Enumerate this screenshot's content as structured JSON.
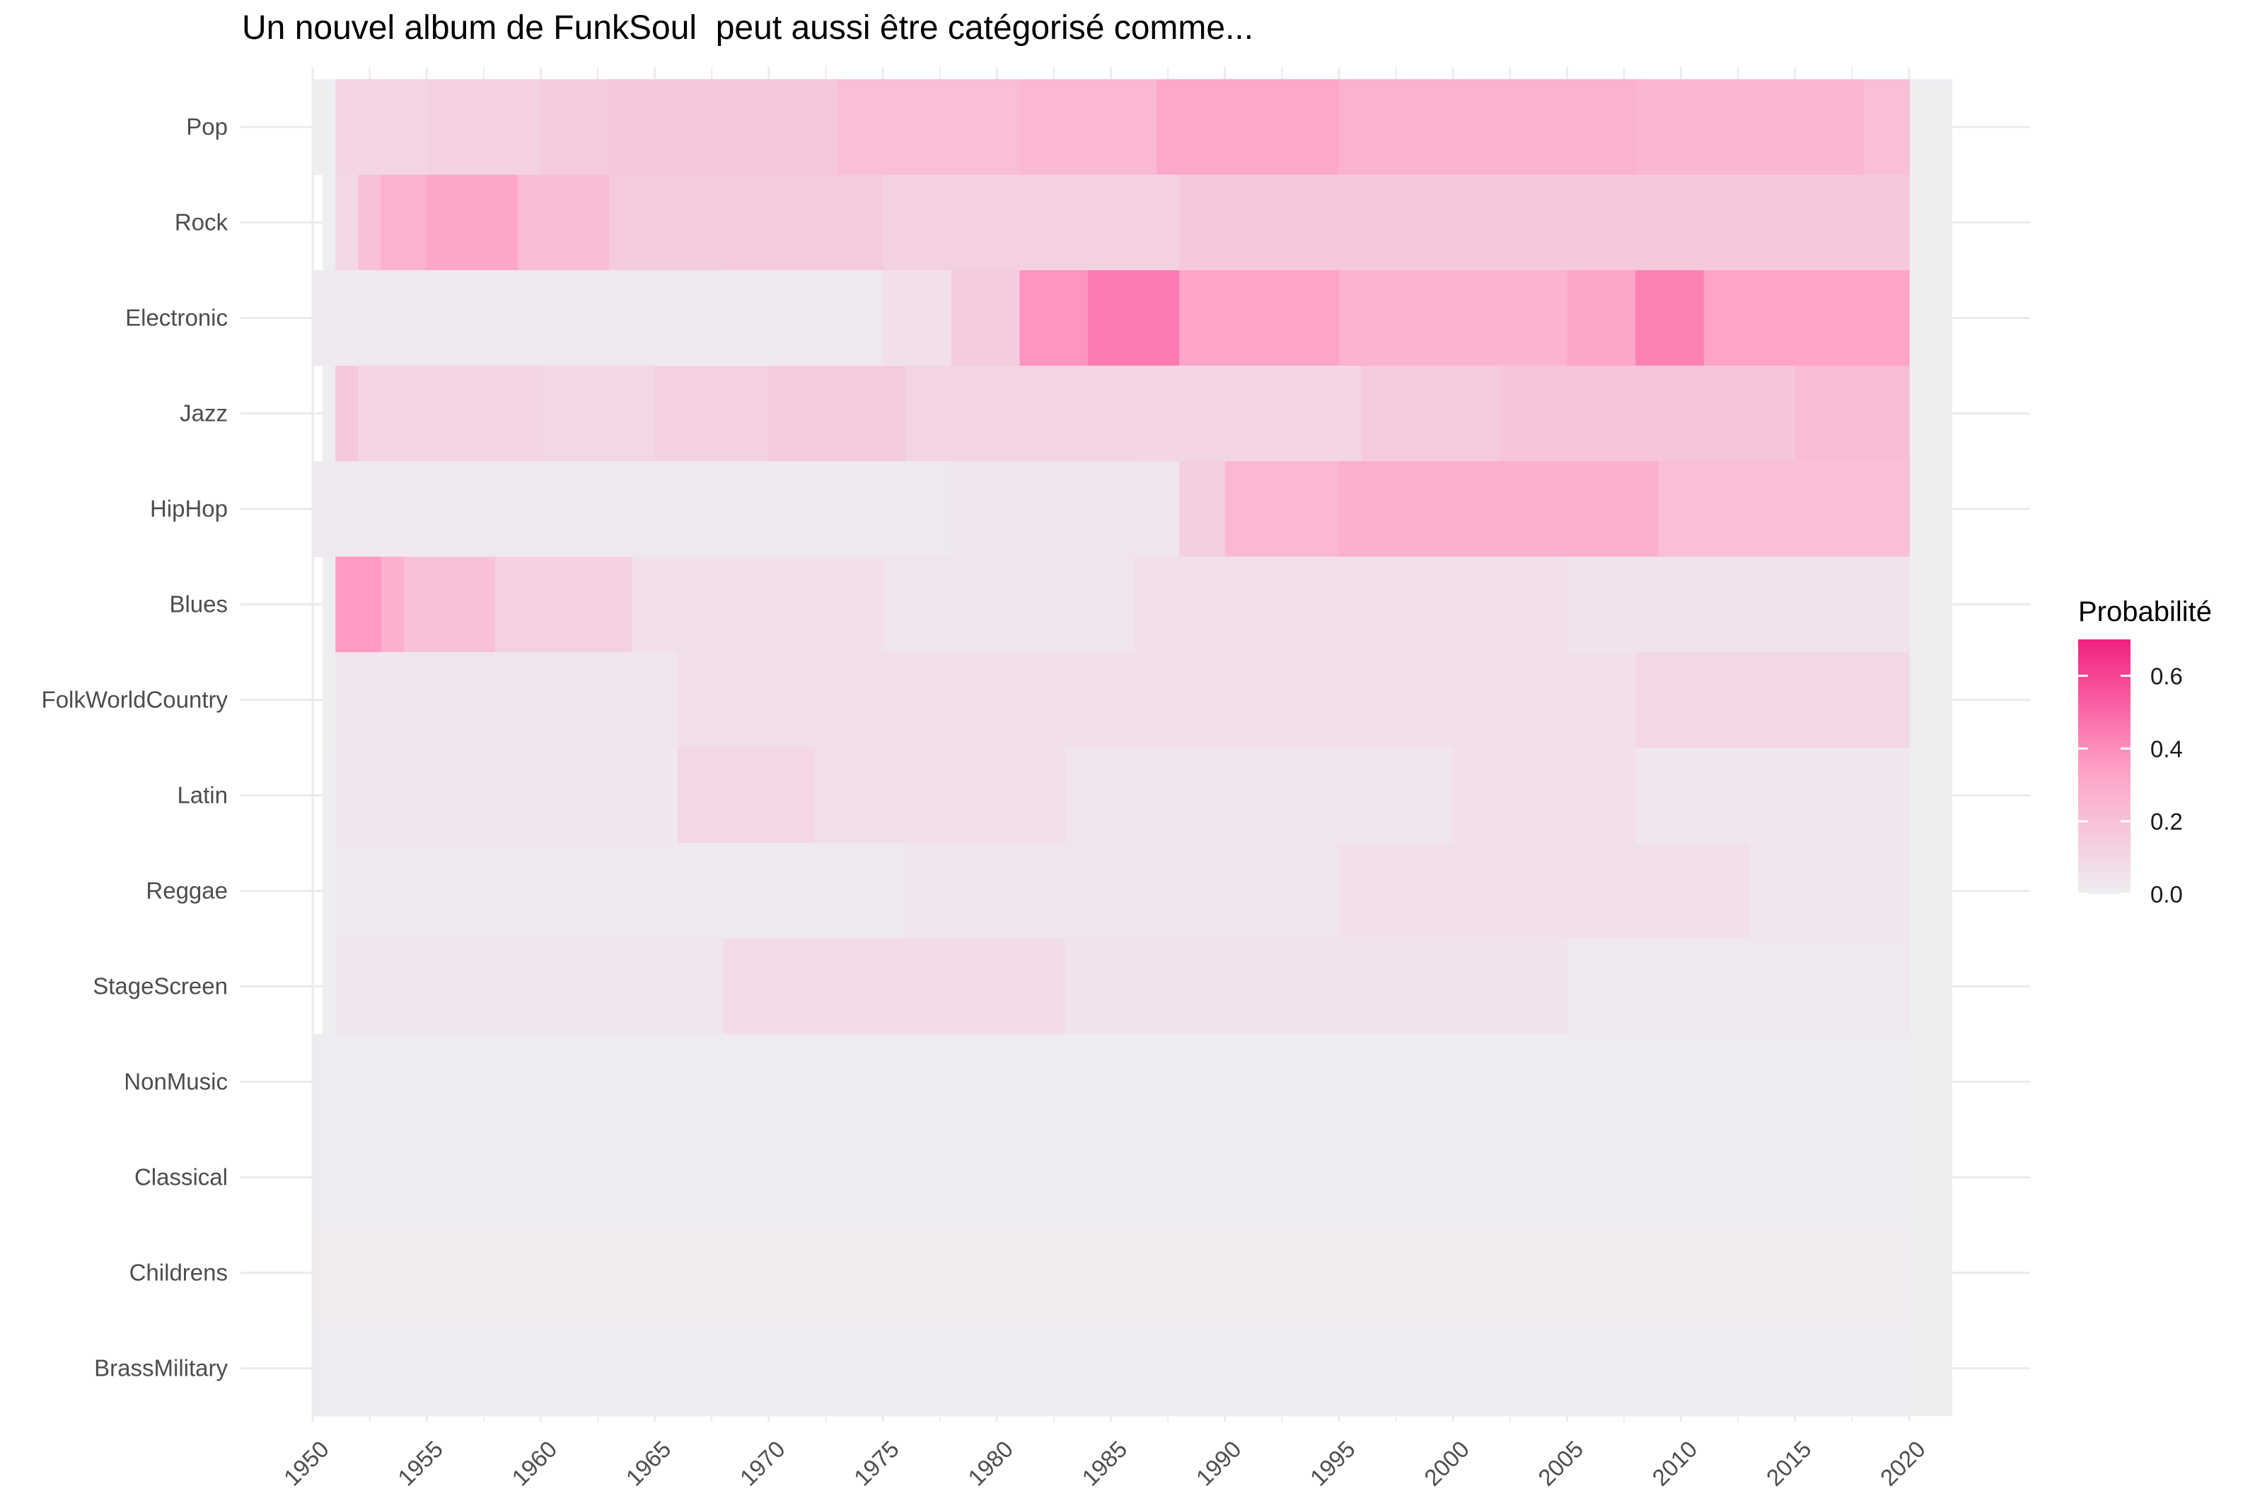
{
  "chart_data": {
    "type": "heatmap",
    "title": "Un nouvel album de FunkSoul  peut aussi être catégorisé comme...",
    "xlabel": "",
    "ylabel": "",
    "x_range": [
      1950,
      2020
    ],
    "x_ticks": [
      "1950",
      "1955",
      "1960",
      "1965",
      "1970",
      "1975",
      "1980",
      "1985",
      "1990",
      "1995",
      "2000",
      "2005",
      "2010",
      "2015",
      "2020"
    ],
    "y_categories": [
      "Pop",
      "Rock",
      "Electronic",
      "Jazz",
      "HipHop",
      "Blues",
      "FolkWorldCountry",
      "Latin",
      "Reggae",
      "StageScreen",
      "NonMusic",
      "Classical",
      "Childrens",
      "BrassMilitary"
    ],
    "legend": {
      "title": "Probabilité",
      "position": "right",
      "ticks": [
        "0.0",
        "0.2",
        "0.4",
        "0.6"
      ],
      "range": [
        0,
        0.7
      ],
      "colors": [
        "#eeeef1",
        "#ff9fc6",
        "#f2207f"
      ]
    },
    "grid": true,
    "series": [
      {
        "name": "Pop",
        "segments": [
          [
            1950,
            1951,
            0
          ],
          [
            1951,
            1955,
            0.11
          ],
          [
            1955,
            1960,
            0.13
          ],
          [
            1960,
            1963,
            0.15
          ],
          [
            1963,
            1973,
            0.17
          ],
          [
            1973,
            1981,
            0.21
          ],
          [
            1981,
            1987,
            0.24
          ],
          [
            1987,
            1995,
            0.31
          ],
          [
            1995,
            2008,
            0.27
          ],
          [
            2008,
            2018,
            0.25
          ],
          [
            2018,
            2020,
            0.21
          ]
        ]
      },
      {
        "name": "Rock",
        "segments": [
          [
            1951,
            1952,
            0.1
          ],
          [
            1952,
            1953,
            0.2
          ],
          [
            1953,
            1955,
            0.27
          ],
          [
            1955,
            1959,
            0.32
          ],
          [
            1959,
            1963,
            0.22
          ],
          [
            1963,
            1968,
            0.15
          ],
          [
            1968,
            1975,
            0.16
          ],
          [
            1975,
            1988,
            0.13
          ],
          [
            1988,
            2020,
            0.17
          ]
        ]
      },
      {
        "name": "Electronic",
        "segments": [
          [
            1950,
            1975,
            0.02
          ],
          [
            1975,
            1978,
            0.06
          ],
          [
            1978,
            1981,
            0.15
          ],
          [
            1981,
            1984,
            0.38
          ],
          [
            1984,
            1988,
            0.45
          ],
          [
            1988,
            1995,
            0.33
          ],
          [
            1995,
            2005,
            0.26
          ],
          [
            2005,
            2008,
            0.32
          ],
          [
            2008,
            2011,
            0.43
          ],
          [
            2011,
            2020,
            0.33
          ]
        ]
      },
      {
        "name": "Jazz",
        "segments": [
          [
            1951,
            1952,
            0.17
          ],
          [
            1952,
            1960,
            0.11
          ],
          [
            1960,
            1965,
            0.1
          ],
          [
            1965,
            1970,
            0.13
          ],
          [
            1970,
            1976,
            0.15
          ],
          [
            1976,
            1986,
            0.12
          ],
          [
            1986,
            1996,
            0.11
          ],
          [
            1996,
            2002,
            0.16
          ],
          [
            2002,
            2015,
            0.18
          ],
          [
            2015,
            2020,
            0.22
          ]
        ]
      },
      {
        "name": "HipHop",
        "segments": [
          [
            1950,
            1978,
            0.02
          ],
          [
            1978,
            1988,
            0.04
          ],
          [
            1988,
            1990,
            0.14
          ],
          [
            1990,
            1995,
            0.24
          ],
          [
            1995,
            2009,
            0.28
          ],
          [
            2009,
            2020,
            0.21
          ]
        ]
      },
      {
        "name": "Blues",
        "segments": [
          [
            1951,
            1953,
            0.36
          ],
          [
            1953,
            1954,
            0.28
          ],
          [
            1954,
            1958,
            0.2
          ],
          [
            1958,
            1964,
            0.13
          ],
          [
            1964,
            1975,
            0.06
          ],
          [
            1975,
            1986,
            0.04
          ],
          [
            1986,
            2005,
            0.06
          ],
          [
            2005,
            2020,
            0.05
          ]
        ]
      },
      {
        "name": "FolkWorldCountry",
        "segments": [
          [
            1951,
            1966,
            0.04
          ],
          [
            1966,
            1980,
            0.07
          ],
          [
            1980,
            2008,
            0.06
          ],
          [
            2008,
            2020,
            0.1
          ]
        ]
      },
      {
        "name": "Latin",
        "segments": [
          [
            1951,
            1966,
            0.03
          ],
          [
            1966,
            1972,
            0.1
          ],
          [
            1972,
            1983,
            0.07
          ],
          [
            1983,
            2000,
            0.04
          ],
          [
            2000,
            2008,
            0.06
          ],
          [
            2008,
            2020,
            0.03
          ]
        ]
      },
      {
        "name": "Reggae",
        "segments": [
          [
            1951,
            1968,
            0.02
          ],
          [
            1968,
            1976,
            0.02
          ],
          [
            1976,
            1995,
            0.04
          ],
          [
            1995,
            2013,
            0.06
          ],
          [
            2013,
            2020,
            0.03
          ]
        ]
      },
      {
        "name": "StageScreen",
        "segments": [
          [
            1951,
            1968,
            0.03
          ],
          [
            1968,
            1983,
            0.08
          ],
          [
            1983,
            2005,
            0.05
          ],
          [
            2005,
            2020,
            0.02
          ]
        ]
      },
      {
        "name": "NonMusic",
        "segments": [
          [
            1950,
            2020,
            0.01
          ]
        ]
      },
      {
        "name": "Classical",
        "segments": [
          [
            1950,
            2020,
            0.01
          ]
        ]
      },
      {
        "name": "Childrens",
        "segments": [
          [
            1950,
            2020,
            0.015
          ]
        ]
      },
      {
        "name": "BrassMilitary",
        "segments": [
          [
            1950,
            2020,
            0.01
          ]
        ]
      }
    ]
  }
}
